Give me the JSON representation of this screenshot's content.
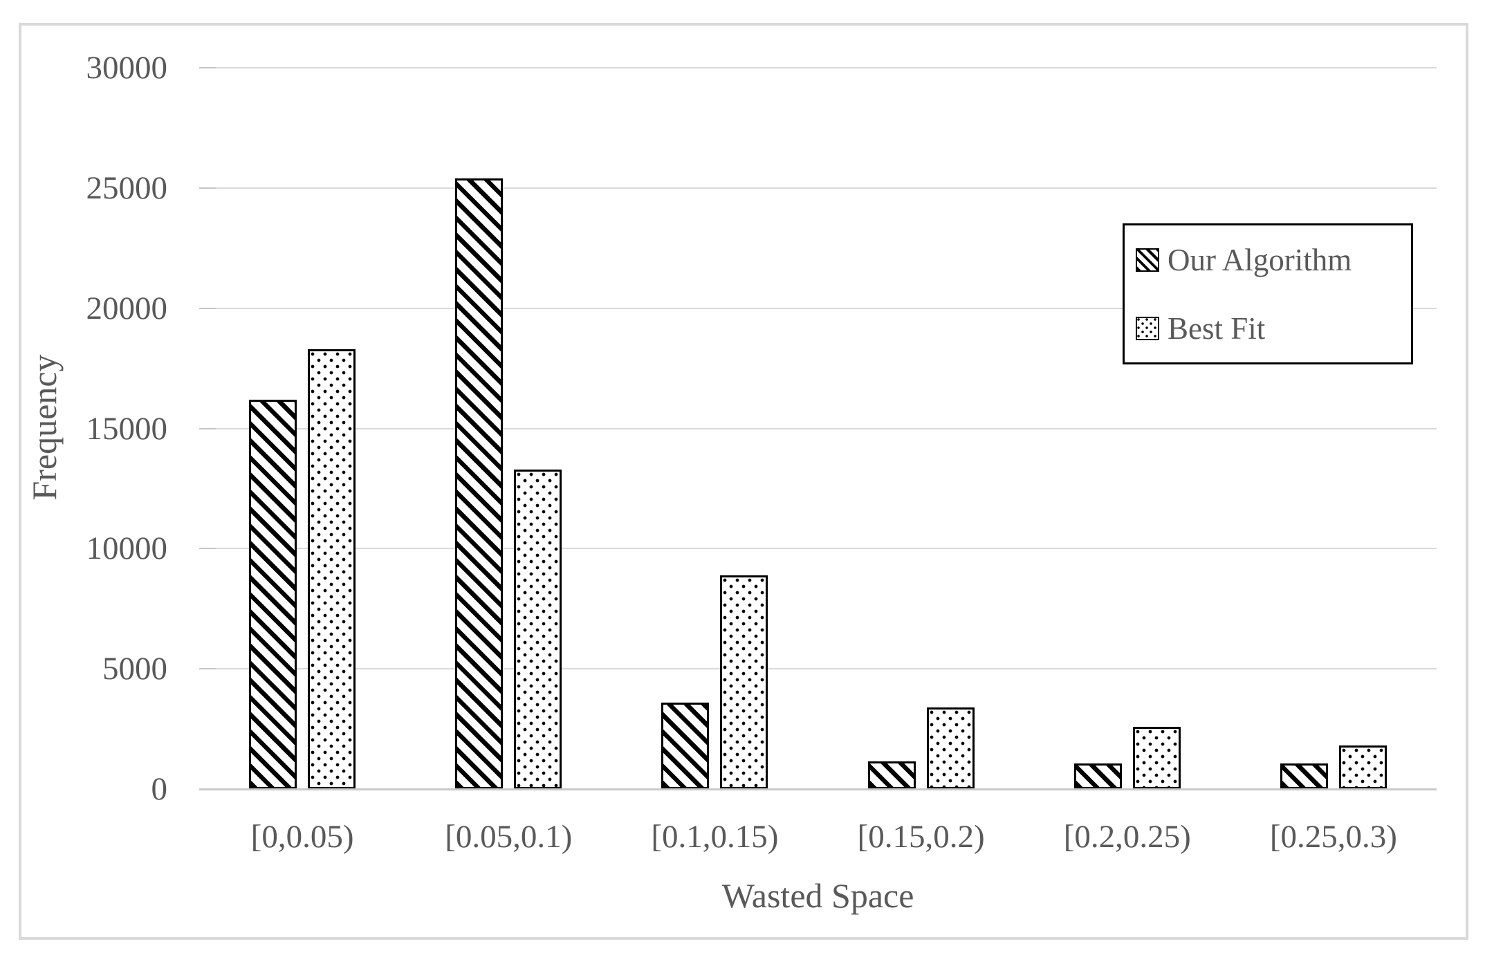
{
  "chart_data": {
    "type": "bar",
    "title": "",
    "xlabel": "Wasted Space",
    "ylabel": "Frequency",
    "categories": [
      "[0,0.05)",
      "[0.05,0.1)",
      "[0.1,0.15)",
      "[0.15,0.2)",
      "[0.2,0.25)",
      "[0.25,0.3)"
    ],
    "series": [
      {
        "name": "Our Algorithm",
        "pattern": "diagonal-stripes",
        "values": [
          16200,
          25400,
          3600,
          1150,
          1050,
          1050
        ]
      },
      {
        "name": "Best Fit",
        "pattern": "dots",
        "values": [
          18300,
          13300,
          8900,
          3400,
          2600,
          1800
        ]
      }
    ],
    "ylim": [
      0,
      30000
    ],
    "ytick_step": 5000,
    "ytick_labels": [
      "0",
      "5000",
      "10000",
      "15000",
      "20000",
      "25000",
      "30000"
    ],
    "grid": "horizontal",
    "legend_position": "inside-top-right"
  },
  "colors": {
    "text": "#595959",
    "gridline": "#d9d9d9",
    "axis_line": "#c9c9c9",
    "bar_fill": "#ffffff",
    "bar_border": "#000000",
    "frame_border": "#d9d9d9",
    "legend_border": "#000000",
    "background": "#ffffff"
  }
}
